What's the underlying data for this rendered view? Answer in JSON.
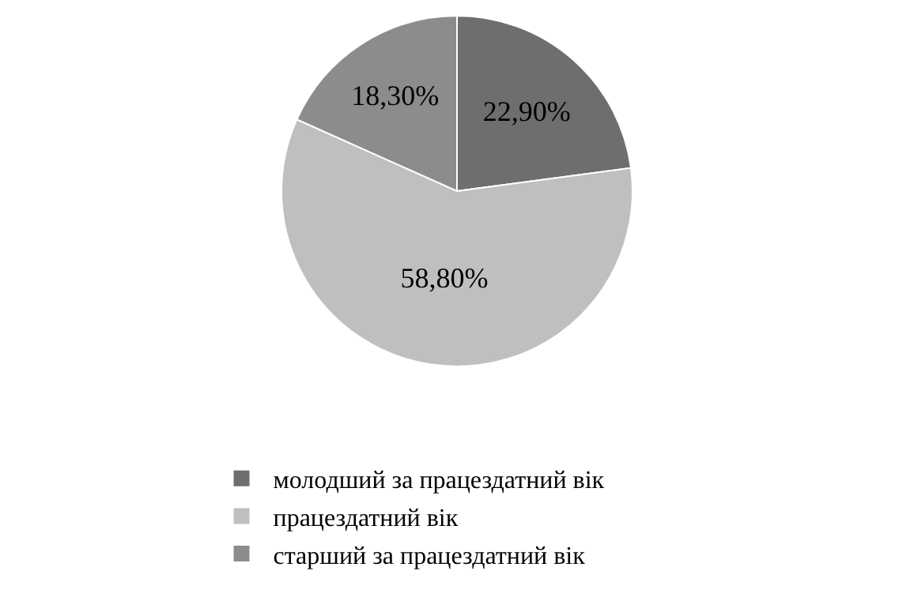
{
  "chart_data": {
    "type": "pie",
    "categories": [
      "молодший за працездатний вік",
      "працездатний вік",
      "старший за працездатний вік"
    ],
    "values": [
      22.9,
      58.8,
      18.3
    ],
    "value_labels": [
      "22,90%",
      "58,80%",
      "18,30%"
    ],
    "colors": [
      "#6e6e6e",
      "#bfbfbf",
      "#8c8c8c"
    ],
    "legend": "bottom"
  }
}
